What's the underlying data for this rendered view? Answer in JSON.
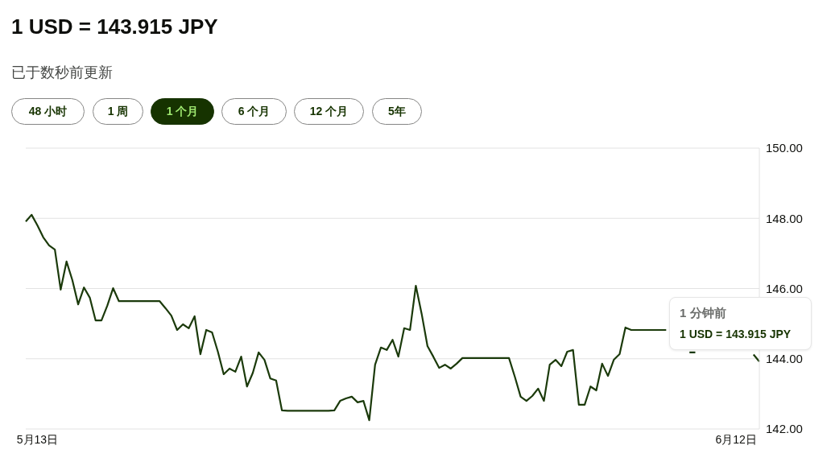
{
  "chart_data": {
    "type": "line",
    "title": "1 USD = 143.915 JPY",
    "subtitle": "已于数秒前更新",
    "annotations": [
      "48 小时",
      "1 周",
      "1 个月",
      "6 个月",
      "12 个月",
      "5年",
      "1 分钟前",
      "1 USD = 143.915 JPY"
    ],
    "categories": [
      null,
      null,
      "5月13日",
      null,
      null,
      null,
      null,
      null,
      null,
      null,
      null,
      null,
      null,
      null,
      null,
      null,
      null,
      null,
      null,
      null,
      null,
      null,
      null,
      null,
      null,
      null,
      null,
      null,
      null,
      null,
      null,
      null,
      null,
      null,
      null,
      null,
      null,
      null,
      null,
      null,
      null,
      null,
      null,
      null,
      null,
      null,
      null,
      null,
      null,
      null,
      null,
      null,
      null,
      null,
      null,
      null,
      null,
      null,
      null,
      null,
      null,
      null,
      null,
      null,
      null,
      null,
      null,
      null,
      null,
      null,
      null,
      null,
      null,
      null,
      null,
      null,
      null,
      null,
      null,
      null,
      null,
      null,
      null,
      null,
      null,
      null,
      null,
      null,
      null,
      null,
      null,
      null,
      null,
      null,
      null,
      null,
      null,
      null,
      null,
      null,
      null,
      null,
      null,
      null,
      null,
      null,
      null,
      null,
      null,
      null,
      null,
      null,
      null,
      null,
      null,
      null,
      null,
      null,
      null,
      null,
      null,
      null,
      "6月12日",
      null,
      null,
      null,
      null
    ],
    "series": [
      {
        "color": "#1b3a0b",
        "values": [
          147.91,
          148.1,
          147.8,
          147.46,
          147.23,
          147.11,
          145.97,
          146.77,
          146.24,
          145.55,
          146.03,
          145.74,
          145.09,
          145.09,
          145.51,
          146.01,
          145.64,
          145.64,
          145.64,
          145.64,
          145.64,
          145.64,
          145.64,
          145.64,
          145.44,
          145.23,
          144.82,
          144.98,
          144.87,
          145.21,
          144.13,
          144.82,
          144.75,
          144.2,
          143.56,
          143.72,
          143.63,
          144.06,
          143.21,
          143.6,
          144.18,
          143.97,
          143.44,
          143.38,
          142.53,
          142.52,
          142.52,
          142.52,
          142.52,
          142.52,
          142.52,
          142.52,
          142.52,
          142.53,
          142.8,
          142.87,
          142.92,
          142.76,
          142.8,
          142.25,
          143.83,
          144.32,
          144.25,
          144.54,
          144.06,
          144.87,
          144.82,
          146.08,
          145.28,
          144.36,
          144.06,
          143.74,
          143.83,
          143.72,
          143.86,
          144.02,
          144.02,
          144.02,
          144.02,
          144.02,
          144.02,
          144.02,
          144.02,
          144.02,
          143.49,
          142.92,
          142.8,
          142.94,
          143.15,
          142.8,
          143.83,
          143.97,
          143.79,
          144.2,
          144.25,
          142.69,
          142.69,
          143.21,
          143.1,
          143.86,
          143.51,
          143.97,
          144.13,
          144.89,
          144.82,
          144.82,
          144.82,
          144.82,
          144.82,
          144.82,
          144.82,
          null,
          null,
          null,
          144.18,
          144.18,
          null,
          null,
          null,
          null,
          null,
          null,
          null,
          null,
          null,
          144.12,
          143.92
        ]
      }
    ],
    "ylim": [
      142,
      150
    ],
    "yticks": [
      {
        "value": 142,
        "label": "142.00"
      },
      {
        "value": 144,
        "label": "144.00"
      },
      {
        "value": 146,
        "label": "146.00"
      },
      {
        "value": 148,
        "label": "148.00"
      },
      {
        "value": 150,
        "label": "150.00"
      }
    ],
    "grid": "y",
    "marker": "none",
    "line_style": "solid"
  }
}
